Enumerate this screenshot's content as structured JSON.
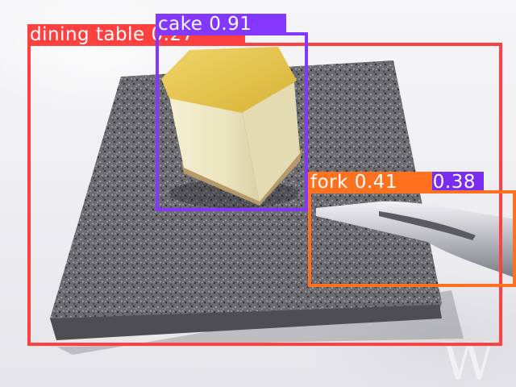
{
  "image": {
    "watermark_text": "W"
  },
  "detections": [
    {
      "id": "dining-table",
      "label": "dining table",
      "score": "0.27",
      "color": "#ff4040"
    },
    {
      "id": "cake",
      "label": "cake",
      "score": "0.91",
      "color": "#8438ff"
    },
    {
      "id": "fork-2",
      "label": "fork",
      "score": "0.38",
      "color": "#7a2cf0"
    },
    {
      "id": "fork",
      "label": "fork",
      "score": "0.41",
      "color": "#ff701f"
    }
  ],
  "colors": {
    "granite": "#6b6b6f",
    "cake": "#f1ecca",
    "cake_top": "#e8c64a",
    "crust": "#b99a6a",
    "fork": "#c9c9cf"
  }
}
